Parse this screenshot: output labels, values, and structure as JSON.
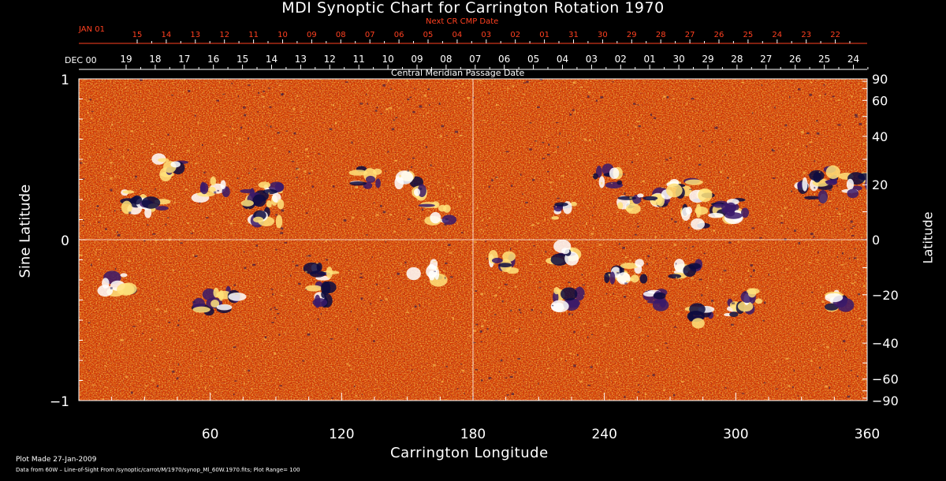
{
  "title": "MDI Synoptic Chart for Carrington Rotation 1970",
  "next_cr_label": "Next CR CMP Date",
  "jan_label": "JAN 01",
  "dec_label": "DEC 00",
  "cmp_label": "Central Meridian Passage Date",
  "top_dates_next": [
    "15",
    "14",
    "13",
    "12",
    "11",
    "10",
    "09",
    "08",
    "07",
    "06",
    "05",
    "04",
    "03",
    "02",
    "01",
    "31",
    "30",
    "29",
    "28",
    "27",
    "26",
    "25",
    "24",
    "23",
    "22"
  ],
  "top_dates_current": [
    "19",
    "18",
    "17",
    "16",
    "15",
    "14",
    "13",
    "12",
    "11",
    "10",
    "09",
    "08",
    "07",
    "06",
    "05",
    "04",
    "03",
    "02",
    "01",
    "30",
    "29",
    "28",
    "27",
    "26",
    "25",
    "24"
  ],
  "x_ticks": [
    "60",
    "120",
    "180",
    "240",
    "300",
    "360"
  ],
  "left_ticks": [
    "1",
    "0",
    "−1"
  ],
  "right_ticks": [
    "90",
    "60",
    "40",
    "20",
    "0",
    "−20",
    "−40",
    "−60",
    "−90"
  ],
  "x_title": "Carrington Longitude",
  "y_title_left": "Sine Latitude",
  "y_title_right": "Latitude",
  "footer_line1": "Plot Made 27-Jan-2009",
  "footer_line2": "Data from 60W – Line-of-Sight From /synoptic/carrot/M/1970/synop_Ml_60W.1970.fits; Plot Range= 100",
  "colors": {
    "background": "#000000",
    "field": "#d23a05",
    "positive": "#ffffff",
    "negative": "#10104a",
    "next_dates": "#ff4020"
  },
  "chart_data": {
    "type": "heatmap",
    "x_range": [
      0,
      360
    ],
    "y_range_sine_latitude": [
      -1,
      1
    ],
    "xlabel": "Carrington Longitude",
    "ylabel": "Sine Latitude",
    "y2label": "Latitude"
  }
}
